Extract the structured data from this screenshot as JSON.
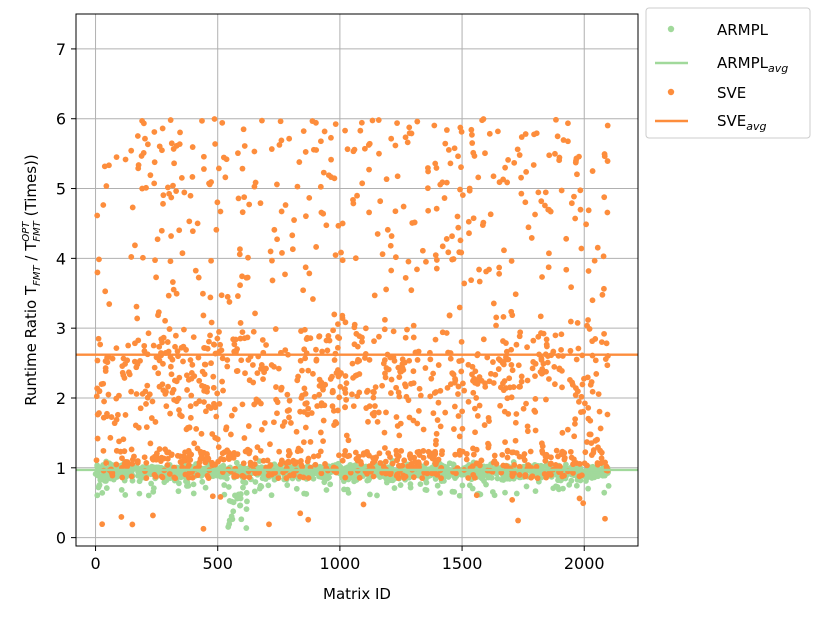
{
  "chart_data": {
    "type": "scatter",
    "xlabel": "Matrix ID",
    "ylabel": {
      "base": "Runtime Ratio T",
      "sub1": "FMT",
      "mid": " / T",
      "sup2": "OPT",
      "sub2": "FMT",
      "tail": " (Times))"
    },
    "xlim": [
      -80,
      2220
    ],
    "ylim": [
      -0.12,
      7.5
    ],
    "xticks": [
      0,
      500,
      1000,
      1500,
      2000
    ],
    "yticks": [
      0,
      1,
      2,
      3,
      4,
      5,
      6,
      7
    ],
    "grid": true,
    "legend_placement": "outside-top-right",
    "series": [
      {
        "name": "ARMPL",
        "kind": "points",
        "color": "#a1d99b",
        "summary": {
          "n_points": 2100,
          "x_range": [
            0,
            2100
          ],
          "typical_range": [
            0.85,
            1.05
          ],
          "min": 0.12,
          "max": 1.15
        }
      },
      {
        "name": "ARMPL",
        "name_sub": "avg",
        "kind": "hline",
        "color": "#a1d99b",
        "value": 0.97
      },
      {
        "name": "SVE",
        "kind": "points",
        "color": "#fd8d3c",
        "summary": {
          "n_points": 2100,
          "x_range": [
            0,
            2100
          ],
          "min": 0.12,
          "max": 6.36
        }
      },
      {
        "name": "SVE",
        "name_sub": "avg",
        "kind": "hline",
        "color": "#fd8d3c",
        "value": 2.62
      }
    ]
  }
}
